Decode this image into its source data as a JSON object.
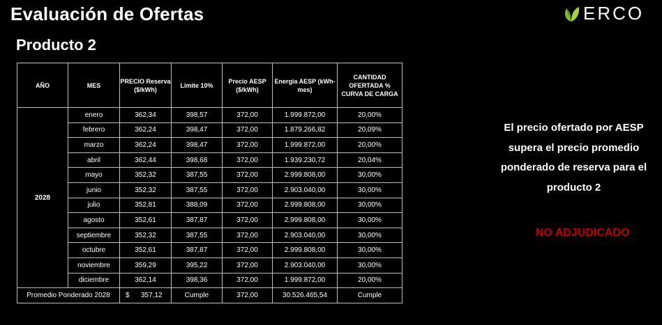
{
  "header": {
    "title": "Evaluación de Ofertas",
    "subtitle": "Producto 2"
  },
  "logo": {
    "text": "ERCO",
    "icon": "leaf-icon",
    "colors": {
      "leaf_green": "#7dbb2f",
      "leaf_dark": "#4e8a1c"
    }
  },
  "table": {
    "headers": {
      "year": "AÑO",
      "month": "MES",
      "price": "PRECIO Reserva ($/kWh)",
      "limit": "Limite 10%",
      "aesp_price": "Precio AESP ($/kWh)",
      "energy": "Energia AESP (kWh-mes)",
      "quantity": "CANTIDAD OFERTADA % CURVA DE CARGA"
    },
    "year": "2028",
    "rows": [
      {
        "month": "enero",
        "price": "362,34",
        "limit": "398,57",
        "aesp": "372,00",
        "energy": "1.999.872,00",
        "pct": "20,00%"
      },
      {
        "month": "febrero",
        "price": "362,24",
        "limit": "398,47",
        "aesp": "372,00",
        "energy": "1.879.266,82",
        "pct": "20,09%"
      },
      {
        "month": "marzo",
        "price": "362,24",
        "limit": "398,47",
        "aesp": "372,00",
        "energy": "1.999.872,00",
        "pct": "20,00%"
      },
      {
        "month": "abril",
        "price": "362,44",
        "limit": "398,68",
        "aesp": "372,00",
        "energy": "1.939.230,72",
        "pct": "20,04%"
      },
      {
        "month": "mayo",
        "price": "352,32",
        "limit": "387,55",
        "aesp": "372,00",
        "energy": "2.999.808,00",
        "pct": "30,00%"
      },
      {
        "month": "junio",
        "price": "352,32",
        "limit": "387,55",
        "aesp": "372,00",
        "energy": "2.903.040,00",
        "pct": "30,00%"
      },
      {
        "month": "julio",
        "price": "352,81",
        "limit": "388,09",
        "aesp": "372,00",
        "energy": "2.999.808,00",
        "pct": "30,00%"
      },
      {
        "month": "agosto",
        "price": "352,61",
        "limit": "387,87",
        "aesp": "372,00",
        "energy": "2.999.808,00",
        "pct": "30,00%"
      },
      {
        "month": "septiembre",
        "price": "352,32",
        "limit": "387,55",
        "aesp": "372,00",
        "energy": "2.903.040,00",
        "pct": "30,00%"
      },
      {
        "month": "octubre",
        "price": "352,61",
        "limit": "387,87",
        "aesp": "372,00",
        "energy": "2.999.808,00",
        "pct": "30,00%"
      },
      {
        "month": "noviembre",
        "price": "359,29",
        "limit": "395,22",
        "aesp": "372,00",
        "energy": "2.903.040,00",
        "pct": "30,00%"
      },
      {
        "month": "diciembre",
        "price": "362,14",
        "limit": "398,36",
        "aesp": "372,00",
        "energy": "1.999.872,00",
        "pct": "20,00%"
      }
    ],
    "summary": {
      "label": "Promedio Ponderado 2028",
      "currency": "$",
      "price": "357,12",
      "limit": "Cumple",
      "aesp": "372,00",
      "energy": "30.526.465,54",
      "pct": "Cumple"
    }
  },
  "message": "El precio ofertado por AESP supera el precio promedio ponderado de reserva para el producto 2",
  "status": {
    "text": "NO ADJUDICADO",
    "color": "#c00000"
  }
}
